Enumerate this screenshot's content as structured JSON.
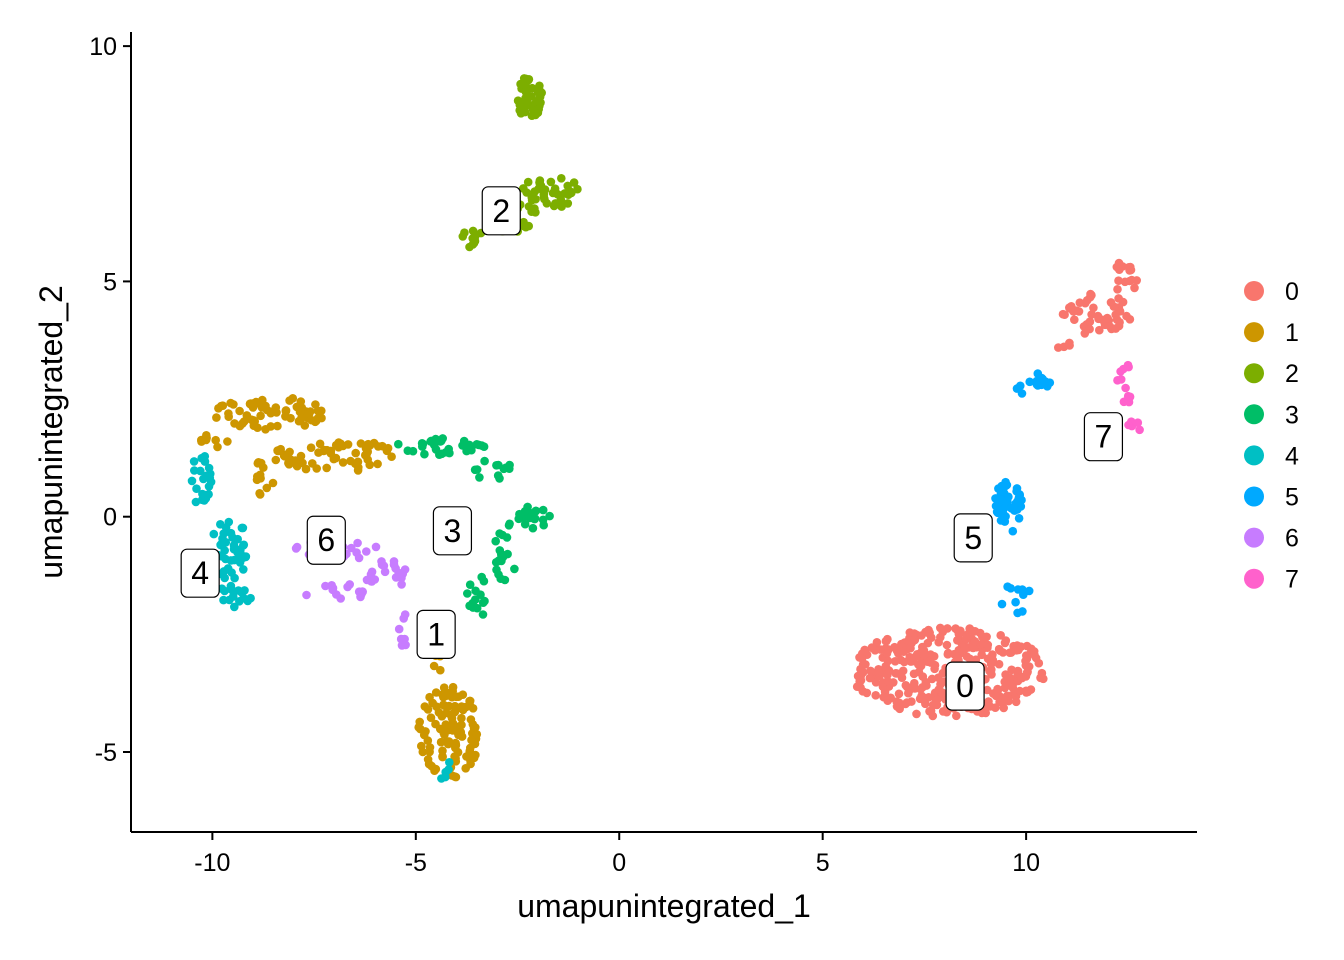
{
  "chart_data": {
    "type": "scatter",
    "title": "",
    "xlabel": "umapunintegrated_1",
    "ylabel": "umapunintegrated_2",
    "xlim": [
      -12,
      14.2
    ],
    "ylim": [
      -6.7,
      10.3
    ],
    "x_ticks": [
      -10,
      -5,
      0,
      5,
      10
    ],
    "y_ticks": [
      -5,
      0,
      5,
      10
    ],
    "x_tick_labels": [
      "-10",
      "-5",
      "0",
      "5",
      "10"
    ],
    "y_tick_labels": [
      "-5",
      "0",
      "5",
      "10"
    ],
    "grid": false,
    "legend_position": "right",
    "point_style": "filled-circle",
    "clusters": [
      {
        "name": "0",
        "color": "#F8766D",
        "label_pos": [
          8.5,
          -3.6
        ],
        "regions": [
          {
            "cx": 8.1,
            "cy": -3.3,
            "rx": 2.4,
            "ry": 0.95,
            "n": 340
          },
          {
            "cx": 11.8,
            "cy": 4.3,
            "rx": 0.9,
            "ry": 0.45,
            "n": 45
          },
          {
            "cx": 12.4,
            "cy": 5.1,
            "rx": 0.35,
            "ry": 0.4,
            "n": 15
          },
          {
            "cx": 10.9,
            "cy": 3.7,
            "rx": 0.2,
            "ry": 0.15,
            "n": 4
          }
        ]
      },
      {
        "name": "1",
        "color": "#CD9600",
        "label_pos": [
          -4.5,
          -2.5
        ],
        "regions": [
          {
            "cx": -4.2,
            "cy": -4.6,
            "rx": 0.75,
            "ry": 1.0,
            "n": 110
          },
          {
            "cx": -8.6,
            "cy": 2.2,
            "rx": 1.4,
            "ry": 0.35,
            "n": 65
          },
          {
            "cx": -7.0,
            "cy": 1.3,
            "rx": 1.5,
            "ry": 0.35,
            "n": 60
          },
          {
            "cx": -8.8,
            "cy": 0.8,
            "rx": 0.3,
            "ry": 0.5,
            "n": 12
          },
          {
            "cx": -4.5,
            "cy": -2.8,
            "rx": 0.35,
            "ry": 0.5,
            "n": 14
          },
          {
            "cx": -9.9,
            "cy": 1.7,
            "rx": 0.4,
            "ry": 0.3,
            "n": 8
          }
        ]
      },
      {
        "name": "2",
        "color": "#7CAE00",
        "label_pos": [
          -2.9,
          6.5
        ],
        "regions": [
          {
            "cx": -2.2,
            "cy": 8.9,
            "rx": 0.3,
            "ry": 0.5,
            "n": 40
          },
          {
            "cx": -1.6,
            "cy": 6.9,
            "rx": 0.8,
            "ry": 0.35,
            "n": 35
          },
          {
            "cx": -2.6,
            "cy": 6.4,
            "rx": 0.55,
            "ry": 0.45,
            "n": 18
          },
          {
            "cx": -3.6,
            "cy": 5.9,
            "rx": 0.3,
            "ry": 0.2,
            "n": 10
          }
        ]
      },
      {
        "name": "3",
        "color": "#00BE67",
        "label_pos": [
          -4.1,
          -0.3
        ],
        "regions": [
          {
            "cx": -4.3,
            "cy": 1.5,
            "rx": 1.2,
            "ry": 0.2,
            "n": 30
          },
          {
            "cx": -3.1,
            "cy": 1.0,
            "rx": 0.45,
            "ry": 0.25,
            "n": 12
          },
          {
            "cx": -2.1,
            "cy": 0.0,
            "rx": 0.4,
            "ry": 0.25,
            "n": 18
          },
          {
            "cx": -2.8,
            "cy": -0.7,
            "rx": 0.3,
            "ry": 0.7,
            "n": 20
          },
          {
            "cx": -3.5,
            "cy": -1.7,
            "rx": 0.25,
            "ry": 0.5,
            "n": 14
          }
        ]
      },
      {
        "name": "4",
        "color": "#00BFC4",
        "label_pos": [
          -10.3,
          -1.2
        ],
        "regions": [
          {
            "cx": -10.3,
            "cy": 0.8,
            "rx": 0.3,
            "ry": 0.55,
            "n": 22
          },
          {
            "cx": -9.5,
            "cy": -0.7,
            "rx": 0.55,
            "ry": 0.65,
            "n": 45
          },
          {
            "cx": -9.5,
            "cy": -1.7,
            "rx": 0.5,
            "ry": 0.25,
            "n": 15
          },
          {
            "cx": -4.3,
            "cy": -5.3,
            "rx": 0.2,
            "ry": 0.3,
            "n": 5
          }
        ]
      },
      {
        "name": "5",
        "color": "#00A9FF",
        "label_pos": [
          8.7,
          -0.45
        ],
        "regions": [
          {
            "cx": 9.55,
            "cy": 0.2,
            "rx": 0.35,
            "ry": 0.55,
            "n": 45
          },
          {
            "cx": 9.8,
            "cy": -1.7,
            "rx": 0.45,
            "ry": 0.35,
            "n": 10
          },
          {
            "cx": 10.1,
            "cy": 2.8,
            "rx": 0.5,
            "ry": 0.3,
            "n": 14
          }
        ]
      },
      {
        "name": "6",
        "color": "#C77CFF",
        "label_pos": [
          -7.2,
          -0.5
        ],
        "regions": [
          {
            "cx": -6.9,
            "cy": -0.7,
            "rx": 1.1,
            "ry": 0.2,
            "n": 22
          },
          {
            "cx": -5.7,
            "cy": -1.2,
            "rx": 0.55,
            "ry": 0.35,
            "n": 22
          },
          {
            "cx": -6.9,
            "cy": -1.6,
            "rx": 0.9,
            "ry": 0.2,
            "n": 14
          },
          {
            "cx": -5.3,
            "cy": -2.5,
            "rx": 0.2,
            "ry": 0.45,
            "n": 8
          }
        ]
      },
      {
        "name": "7",
        "color": "#FF61CC",
        "label_pos": [
          11.9,
          1.7
        ],
        "regions": [
          {
            "cx": 12.4,
            "cy": 2.8,
            "rx": 0.2,
            "ry": 0.5,
            "n": 12
          },
          {
            "cx": 12.7,
            "cy": 1.9,
            "rx": 0.2,
            "ry": 0.15,
            "n": 6
          }
        ]
      }
    ]
  }
}
